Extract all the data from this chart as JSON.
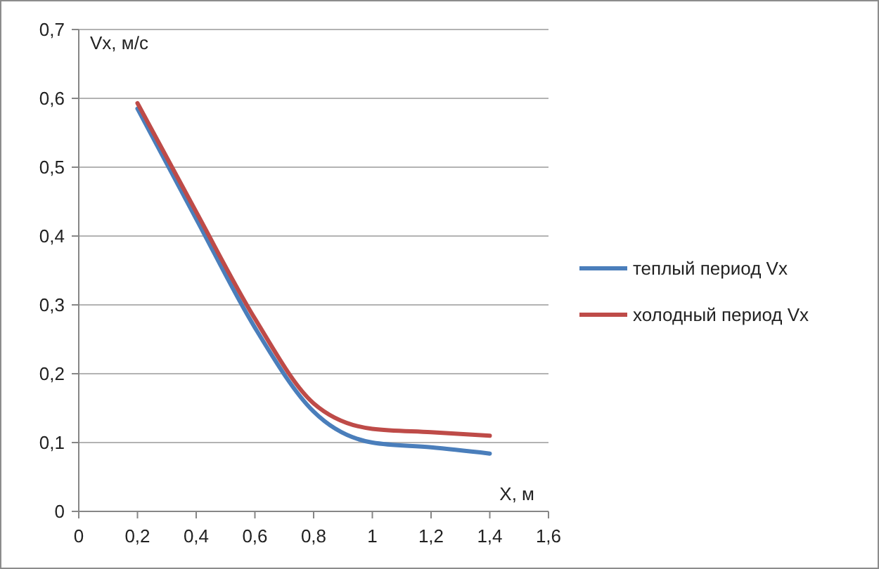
{
  "chart_data": {
    "type": "line",
    "xlabel": "X, м",
    "ylabel": "Vx, м/с",
    "xlim": [
      0,
      1.6
    ],
    "xticks": [
      {
        "value": 0,
        "label": "0"
      },
      {
        "value": 0.2,
        "label": "0,2"
      },
      {
        "value": 0.4,
        "label": "0,4"
      },
      {
        "value": 0.6,
        "label": "0,6"
      },
      {
        "value": 0.8,
        "label": "0,8"
      },
      {
        "value": 1,
        "label": "1"
      },
      {
        "value": 1.2,
        "label": "1,2"
      },
      {
        "value": 1.4,
        "label": "1,4"
      },
      {
        "value": 1.6,
        "label": "1,6"
      }
    ],
    "ylim": [
      0,
      0.7
    ],
    "yticks": [
      {
        "value": 0,
        "label": "0"
      },
      {
        "value": 0.1,
        "label": "0,1"
      },
      {
        "value": 0.2,
        "label": "0,2"
      },
      {
        "value": 0.3,
        "label": "0,3"
      },
      {
        "value": 0.4,
        "label": "0,4"
      },
      {
        "value": 0.5,
        "label": "0,5"
      },
      {
        "value": 0.6,
        "label": "0,6"
      },
      {
        "value": 0.7,
        "label": "0,7"
      }
    ],
    "grid": "y",
    "legend": "right",
    "marker": "none",
    "line_style": "solid",
    "x": [
      0.2,
      0.4,
      0.6,
      0.8,
      1.0,
      1.2,
      1.4
    ],
    "series": [
      {
        "name": "теплый период Vx",
        "color": "#4a7ebb",
        "values": [
          0.585,
          0.425,
          0.267,
          0.145,
          0.1,
          0.093,
          0.084
        ]
      },
      {
        "name": "холодный период Vx",
        "color": "#be4b48",
        "values": [
          0.593,
          0.435,
          0.28,
          0.157,
          0.12,
          0.115,
          0.11
        ]
      }
    ]
  }
}
